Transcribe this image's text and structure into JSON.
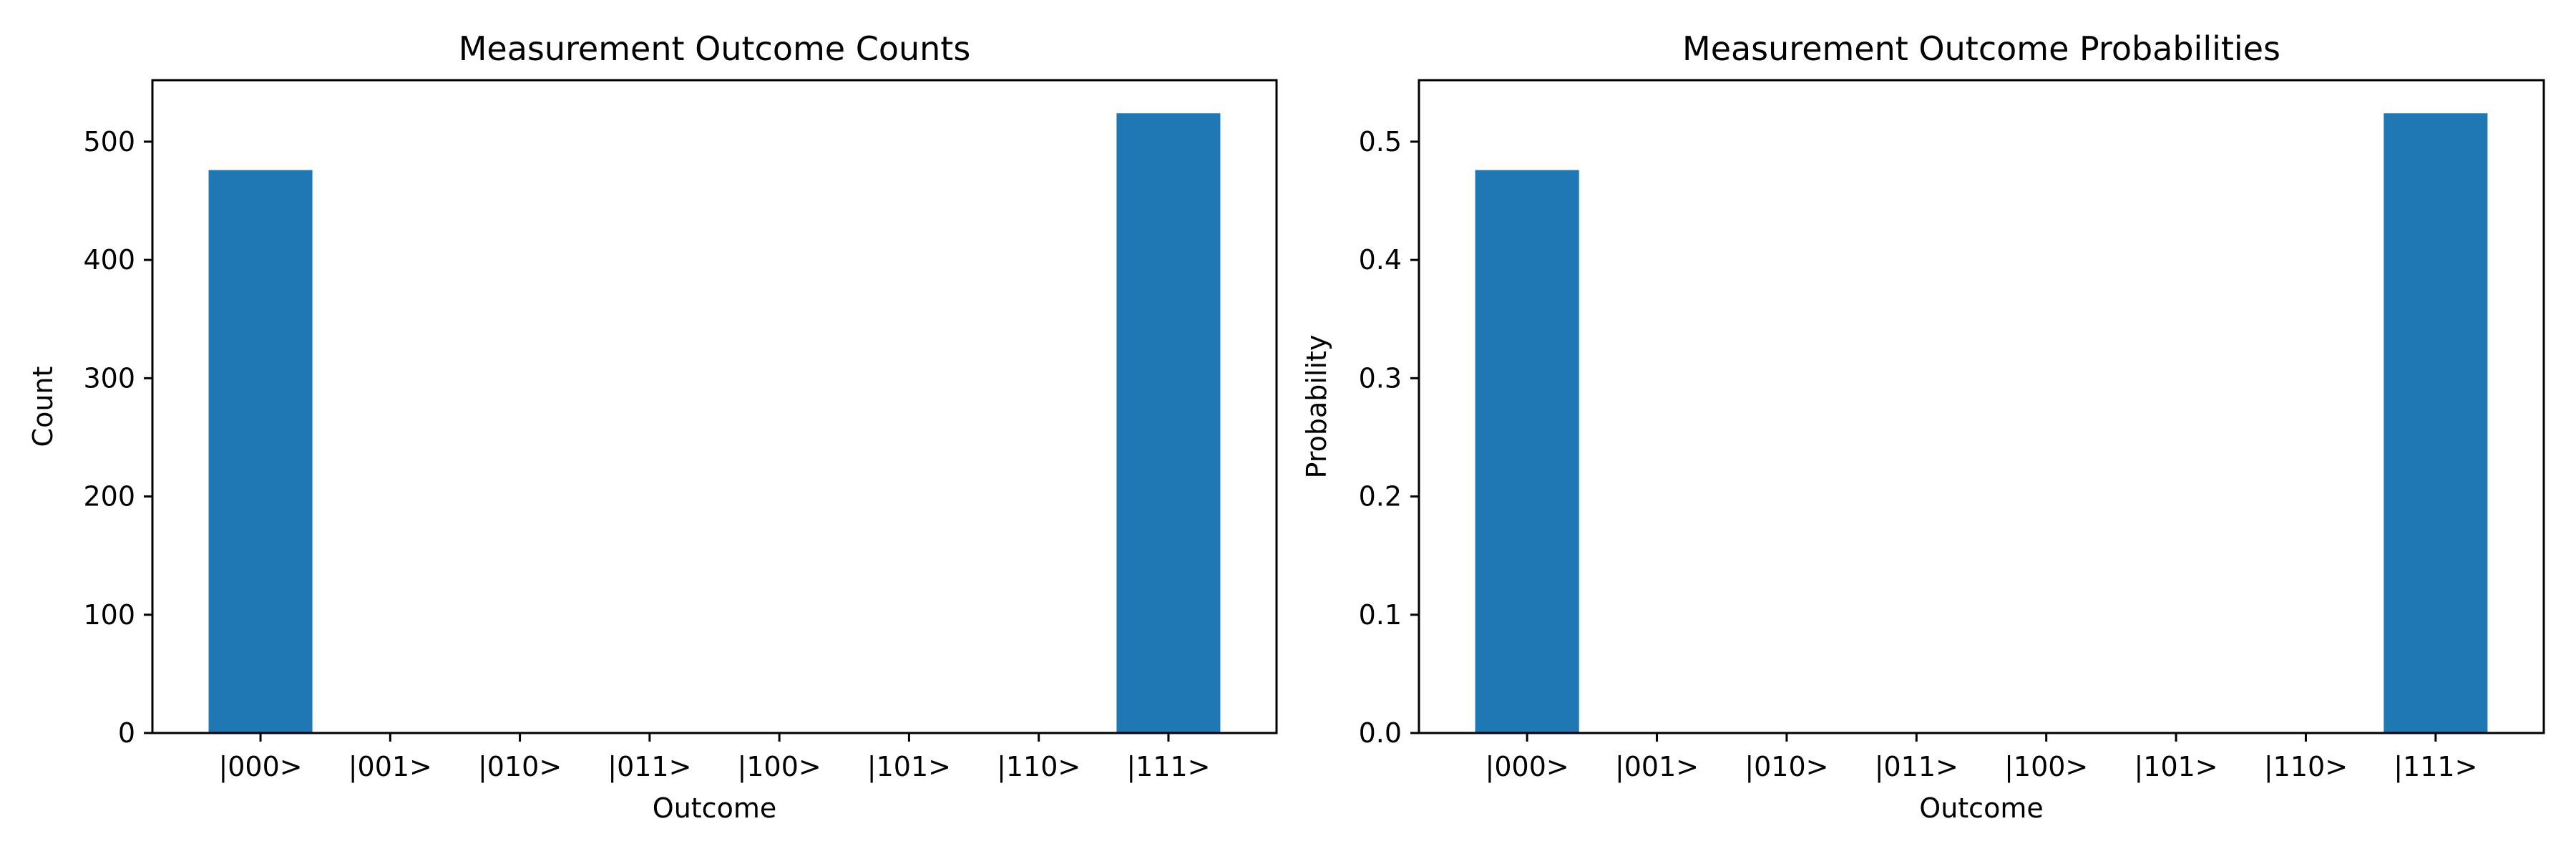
{
  "chart_data": [
    {
      "type": "bar",
      "title": "Measurement Outcome Counts",
      "xlabel": "Outcome",
      "ylabel": "Count",
      "categories": [
        "|000>",
        "|001>",
        "|010>",
        "|011>",
        "|100>",
        "|101>",
        "|110>",
        "|111>"
      ],
      "values": [
        476,
        0,
        0,
        0,
        0,
        0,
        0,
        524
      ],
      "ylim": [
        0,
        552
      ],
      "yticks": [
        0,
        100,
        200,
        300,
        400,
        500
      ],
      "grid": false,
      "bar_color": "#1f77b4"
    },
    {
      "type": "bar",
      "title": "Measurement Outcome Probabilities",
      "xlabel": "Outcome",
      "ylabel": "Probability",
      "categories": [
        "|000>",
        "|001>",
        "|010>",
        "|011>",
        "|100>",
        "|101>",
        "|110>",
        "|111>"
      ],
      "values": [
        0.476,
        0,
        0,
        0,
        0,
        0,
        0,
        0.524
      ],
      "ylim": [
        0,
        0.552
      ],
      "yticks": [
        "0.0",
        "0.1",
        "0.2",
        "0.3",
        "0.4",
        "0.5"
      ],
      "grid": false,
      "bar_color": "#1f77b4"
    }
  ]
}
